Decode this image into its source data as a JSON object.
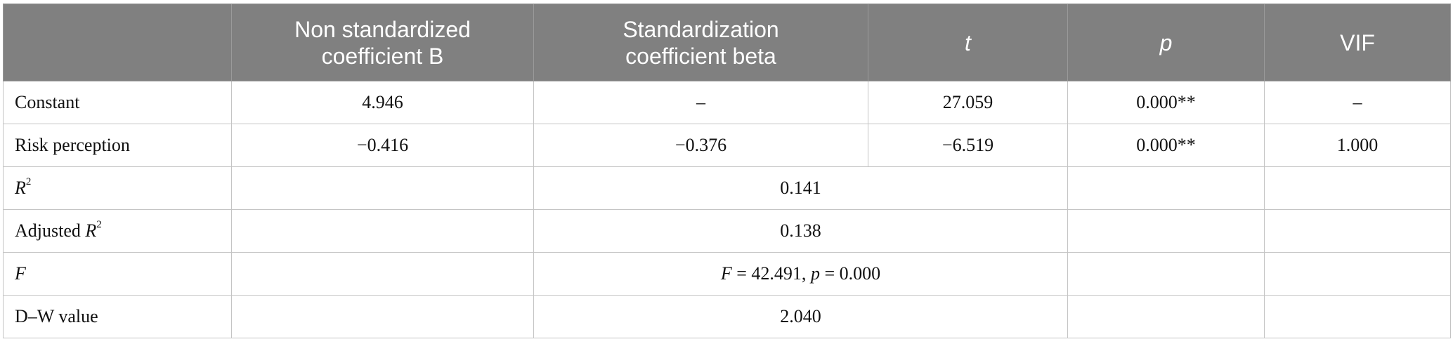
{
  "table": {
    "headers": {
      "blank": "",
      "b_line1": "Non standardized",
      "b_line2": "coefficient B",
      "beta_line1": "Standardization",
      "beta_line2": "coefficient beta",
      "t": "t",
      "p": "p",
      "vif": "VIF"
    },
    "rows": {
      "constant": {
        "label": "Constant",
        "b": "4.946",
        "beta": "–",
        "t": "27.059",
        "p": "0.000**",
        "vif": "–"
      },
      "risk": {
        "label": "Risk perception",
        "b": "−0.416",
        "beta": "−0.376",
        "t": "−6.519",
        "p": "0.000**",
        "vif": "1.000"
      },
      "r2": {
        "label_italic": "R",
        "label_sup": "2",
        "value": "0.141"
      },
      "adj_r2": {
        "label_prefix": "Adjusted ",
        "label_italic": "R",
        "label_sup": "2",
        "value": "0.138"
      },
      "f": {
        "label_italic": "F",
        "f_sym": "F",
        "f_eq": " = 42.491, ",
        "p_sym": "p",
        "p_eq": " = 0.000"
      },
      "dw": {
        "label": "D–W value",
        "value": "2.040"
      }
    }
  }
}
